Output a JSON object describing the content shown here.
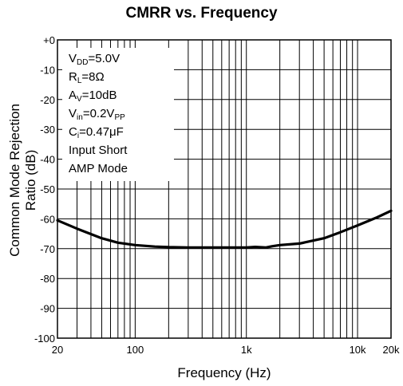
{
  "chart_data": {
    "type": "line",
    "title": "CMRR vs. Frequency",
    "xlabel": "Frequency (Hz)",
    "ylabel": "Common Mode Rejection Ratio (dB)",
    "x_scale": "log",
    "xlim": [
      20,
      20000
    ],
    "ylim": [
      -100,
      0
    ],
    "x_ticks": [
      20,
      100,
      1000,
      10000,
      20000
    ],
    "x_tick_labels": [
      "20",
      "100",
      "1k",
      "10k",
      "20k"
    ],
    "y_ticks": [
      0,
      -10,
      -20,
      -30,
      -40,
      -50,
      -60,
      -70,
      -80,
      -90,
      -100
    ],
    "y_tick_labels": [
      "+0",
      "-10",
      "-20",
      "-30",
      "-40",
      "-50",
      "-60",
      "-70",
      "-80",
      "-90",
      "-100"
    ],
    "grid": true,
    "conditions": [
      {
        "main": "V",
        "sub": "DD",
        "rest": "=5.0V"
      },
      {
        "main": "R",
        "sub": "L",
        "rest": "=8Ω"
      },
      {
        "main": "A",
        "sub": "V",
        "rest": "=10dB"
      },
      {
        "main": "V",
        "sub": "in",
        "rest": "=0.2V",
        "sub2": "PP"
      },
      {
        "main": "C",
        "sub": "i",
        "rest": "=0.47μF"
      },
      {
        "main": "Input Short",
        "sub": "",
        "rest": ""
      },
      {
        "main": "AMP Mode",
        "sub": "",
        "rest": ""
      }
    ],
    "series": [
      {
        "color": "#000000",
        "x": [
          20,
          30,
          50,
          70,
          100,
          150,
          200,
          300,
          500,
          700,
          1000,
          1200,
          1500,
          1700,
          2000,
          3000,
          5000,
          7000,
          10000,
          15000,
          20000
        ],
        "y": [
          -60.5,
          -63.3,
          -66.5,
          -68.0,
          -68.8,
          -69.3,
          -69.5,
          -69.6,
          -69.6,
          -69.6,
          -69.6,
          -69.4,
          -69.6,
          -69.2,
          -68.8,
          -68.3,
          -66.5,
          -64.5,
          -62.2,
          -59.5,
          -57.3
        ]
      }
    ]
  }
}
